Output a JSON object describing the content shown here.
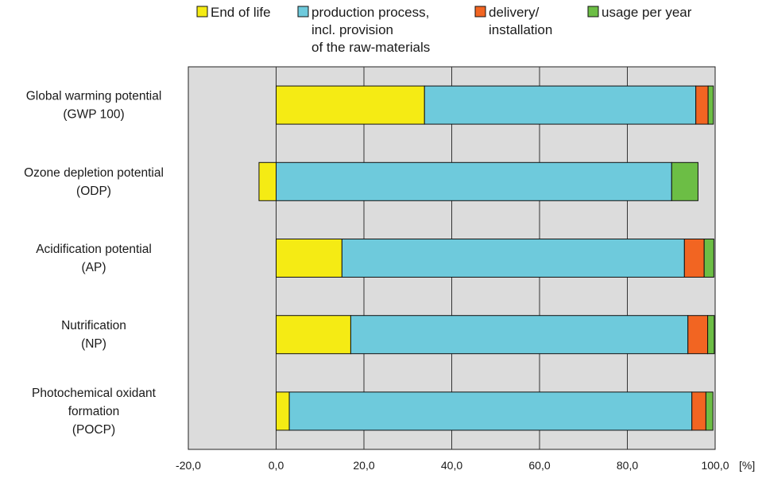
{
  "chart_data": {
    "type": "bar",
    "orientation": "horizontal",
    "stacked": true,
    "xlim": [
      -20,
      100
    ],
    "x_ticks": [
      -20,
      0,
      20,
      40,
      60,
      80,
      100
    ],
    "x_tick_labels": [
      "-20,0",
      "0,0",
      "20,0",
      "40,0",
      "60,0",
      "80,0",
      "100,0"
    ],
    "x_unit": "[%]",
    "grid": true,
    "legend_position": "top",
    "categories": [
      [
        "Global warming potential",
        "(GWP 100)"
      ],
      [
        "Ozone depletion potential",
        "(ODP)"
      ],
      [
        "Acidification potential",
        "(AP)"
      ],
      [
        "Nutrification",
        "(NP)"
      ],
      [
        "Photochemical oxidant",
        "formation",
        "(POCP)"
      ]
    ],
    "series": [
      {
        "name": [
          "End of life"
        ],
        "color": "#f5eb14",
        "values": [
          33.8,
          -3.9,
          15.0,
          17.0,
          3.0
        ]
      },
      {
        "name": [
          "production process,",
          "incl. provision",
          "of the raw-materials"
        ],
        "color": "#6ecadc",
        "values": [
          61.8,
          90.1,
          78.0,
          76.8,
          91.7
        ]
      },
      {
        "name": [
          "delivery/",
          "installation"
        ],
        "color": "#f26522",
        "values": [
          2.8,
          0.0,
          4.5,
          4.5,
          3.2
        ]
      },
      {
        "name": [
          "usage per year"
        ],
        "color": "#6cbe45",
        "values": [
          1.2,
          6.0,
          2.2,
          1.5,
          1.6
        ]
      }
    ]
  }
}
